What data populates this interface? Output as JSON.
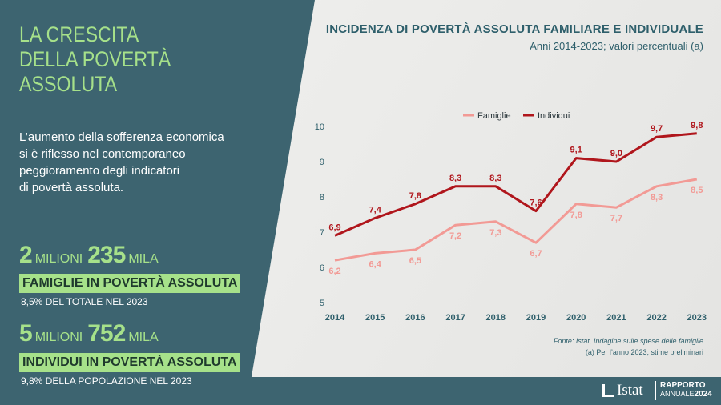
{
  "left": {
    "headline": [
      "LA CRESCITA",
      "DELLA POVERTÀ",
      "ASSOLUTA"
    ],
    "intro": [
      "L’aumento della sofferenza economica",
      "si è riflesso nel contemporaneo",
      "peggioramento degli indicatori",
      "di povertà assoluta."
    ],
    "stat1": {
      "num1": "2",
      "unit1": "MILIONI",
      "num2": "235",
      "unit2": "MILA",
      "label": "FAMIGLIE IN POVERTÀ ASSOLUTA",
      "sub": "8,5% DEL TOTALE NEL 2023"
    },
    "stat2": {
      "num1": "5",
      "unit1": "MILIONI",
      "num2": "752",
      "unit2": "MILA",
      "label": "INDIVIDUI IN POVERTÀ ASSOLUTA",
      "sub": "9,8% DELLA POPOLAZIONE NEL 2023"
    }
  },
  "chart": {
    "title": "INCIDENZA DI POVERTÀ ASSOLUTA FAMILIARE E INDIVIDUALE",
    "subtitle": "Anni 2014-2023; valori percentuali (a)",
    "source": "Fonte: Istat, Indagine sulle spese delle famiglie",
    "note": "(a) Per l’anno 2023, stime preliminari"
  },
  "footer": {
    "logo": "Istat",
    "rapporto": "RAPPORTO",
    "annuale": "ANNUALE",
    "year": "2024"
  },
  "colors": {
    "panel": "#3d6470",
    "accent": "#a6e18a",
    "famiglie": "#f29a95",
    "individui": "#b0161c",
    "title": "#2e5f6b"
  },
  "chart_data": {
    "type": "line",
    "x": [
      "2014",
      "2015",
      "2016",
      "2017",
      "2018",
      "2019",
      "2020",
      "2021",
      "2022",
      "2023"
    ],
    "series": [
      {
        "name": "Famiglie",
        "values": [
          6.2,
          6.4,
          6.5,
          7.2,
          7.3,
          6.7,
          7.8,
          7.7,
          8.3,
          8.5
        ],
        "labels": [
          "6,2",
          "6,4",
          "6,5",
          "7,2",
          "7,3",
          "6,7",
          "7,8",
          "7,7",
          "8,3",
          "8,5"
        ]
      },
      {
        "name": "Individui",
        "values": [
          6.9,
          7.4,
          7.8,
          8.3,
          8.3,
          7.6,
          9.1,
          9.0,
          9.7,
          9.8
        ],
        "labels": [
          "6,9",
          "7,4",
          "7,8",
          "8,3",
          "8,3",
          "7,6",
          "9,1",
          "9,0",
          "9,7",
          "9,8"
        ]
      }
    ],
    "ylim": [
      5,
      10
    ],
    "yticks": [
      "5",
      "6",
      "7",
      "8",
      "9",
      "10"
    ],
    "grid": false,
    "legend": "top-left"
  }
}
